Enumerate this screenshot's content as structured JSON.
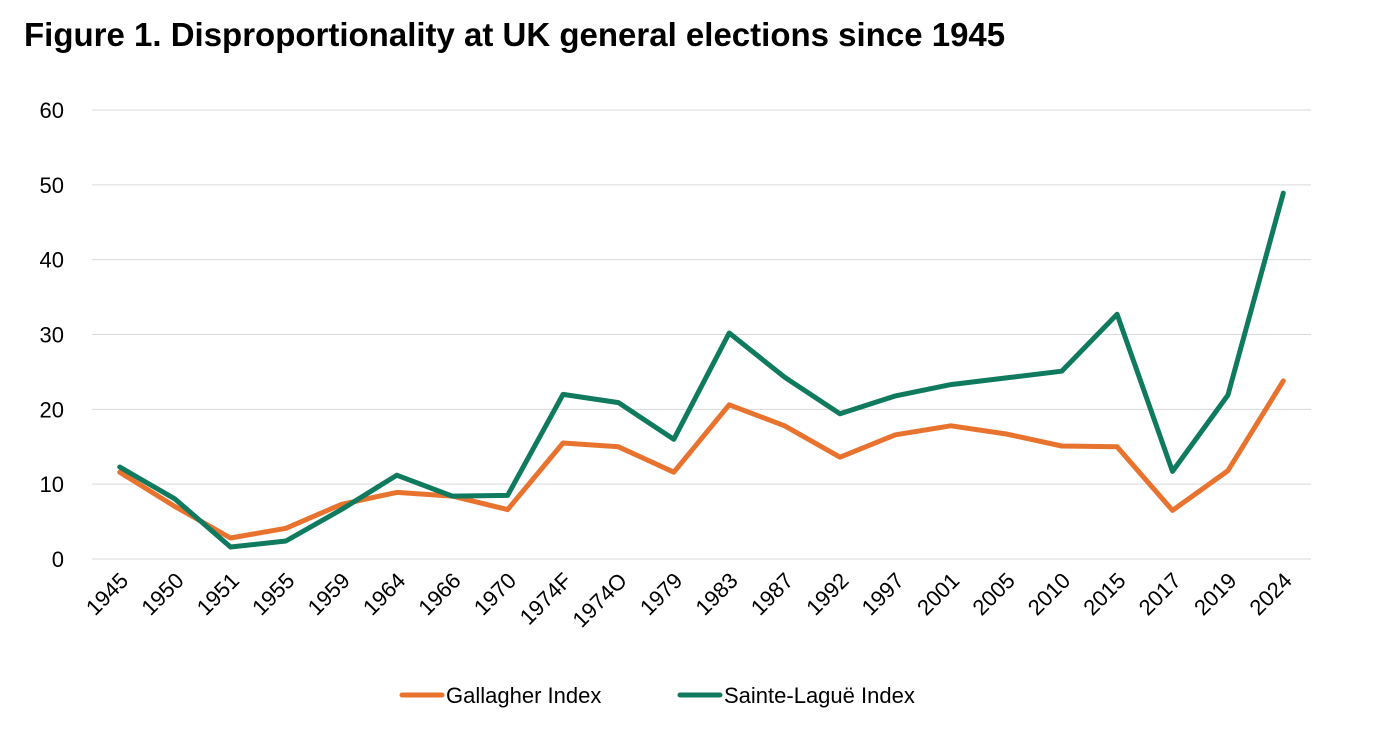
{
  "chart_data": {
    "type": "line",
    "title": "Figure 1. Disproportionality at UK general elections since 1945",
    "xlabel": "",
    "ylabel": "",
    "ylim": [
      0,
      60
    ],
    "yticks": [
      0,
      10,
      20,
      30,
      40,
      50,
      60
    ],
    "grid": true,
    "legend_position": "bottom",
    "categories": [
      "1945",
      "1950",
      "1951",
      "1955",
      "1959",
      "1964",
      "1966",
      "1970",
      "1974F",
      "1974O",
      "1979",
      "1983",
      "1987",
      "1992",
      "1997",
      "2001",
      "2005",
      "2010",
      "2015",
      "2017",
      "2019",
      "2024"
    ],
    "series": [
      {
        "name": "Gallagher Index",
        "color": "#E8732F",
        "values": [
          11.6,
          7.0,
          2.8,
          4.1,
          7.3,
          8.9,
          8.4,
          6.6,
          15.5,
          15.0,
          11.6,
          20.6,
          17.8,
          13.6,
          16.6,
          17.8,
          16.7,
          15.1,
          15.0,
          6.5,
          11.8,
          23.8
        ]
      },
      {
        "name": "Sainte-Laguë Index",
        "color": "#0F7A5E",
        "values": [
          12.3,
          8.0,
          1.6,
          2.4,
          6.6,
          11.2,
          8.4,
          8.5,
          22.0,
          20.9,
          16.0,
          30.2,
          24.3,
          19.4,
          21.8,
          23.3,
          24.2,
          25.1,
          32.7,
          11.7,
          21.9,
          48.9
        ]
      }
    ]
  }
}
